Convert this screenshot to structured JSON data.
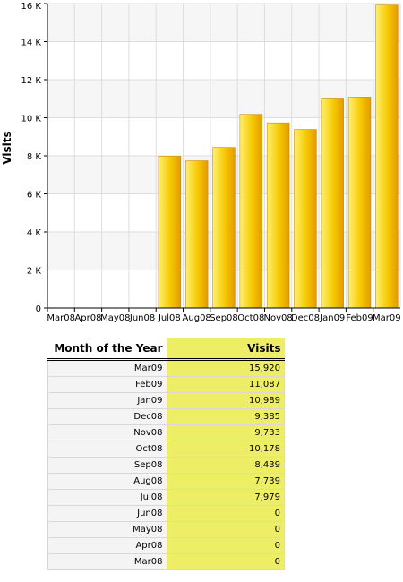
{
  "chart_data": {
    "type": "bar",
    "ylabel": "Visits",
    "xlabel": "",
    "categories": [
      "Mar08",
      "Apr08",
      "May08",
      "Jun08",
      "Jul08",
      "Aug08",
      "Sep08",
      "Oct08",
      "Nov08",
      "Dec08",
      "Jan09",
      "Feb09",
      "Mar09"
    ],
    "values": [
      0,
      0,
      0,
      0,
      7979,
      7739,
      8439,
      10178,
      9733,
      9385,
      10989,
      11087,
      15920
    ],
    "ylim": [
      0,
      16000
    ],
    "yticks": [
      {
        "value": 0,
        "label": "0"
      },
      {
        "value": 2000,
        "label": "2 K"
      },
      {
        "value": 4000,
        "label": "4 K"
      },
      {
        "value": 6000,
        "label": "6 K"
      },
      {
        "value": 8000,
        "label": "8 K"
      },
      {
        "value": 10000,
        "label": "10 K"
      },
      {
        "value": 12000,
        "label": "12 K"
      },
      {
        "value": 14000,
        "label": "14 K"
      },
      {
        "value": 16000,
        "label": "16 K"
      }
    ],
    "grid": true,
    "colors": {
      "bar_light": "#fff070",
      "bar_dark": "#eaa000",
      "bar_edge": "#d08a00",
      "plot_band": "#f6f6f6",
      "grid": "#dddddd"
    }
  },
  "table": {
    "headers": {
      "month": "Month of the Year",
      "visits": "Visits"
    },
    "rows": [
      {
        "month": "Mar09",
        "visits": "15,920"
      },
      {
        "month": "Feb09",
        "visits": "11,087"
      },
      {
        "month": "Jan09",
        "visits": "10,989"
      },
      {
        "month": "Dec08",
        "visits": "9,385"
      },
      {
        "month": "Nov08",
        "visits": "9,733"
      },
      {
        "month": "Oct08",
        "visits": "10,178"
      },
      {
        "month": "Sep08",
        "visits": "8,439"
      },
      {
        "month": "Aug08",
        "visits": "7,739"
      },
      {
        "month": "Jul08",
        "visits": "7,979"
      },
      {
        "month": "Jun08",
        "visits": "0"
      },
      {
        "month": "May08",
        "visits": "0"
      },
      {
        "month": "Apr08",
        "visits": "0"
      },
      {
        "month": "Mar08",
        "visits": "0"
      }
    ],
    "colors": {
      "visits_column": "#eeee66",
      "month_column": "#f4f4f4"
    }
  }
}
